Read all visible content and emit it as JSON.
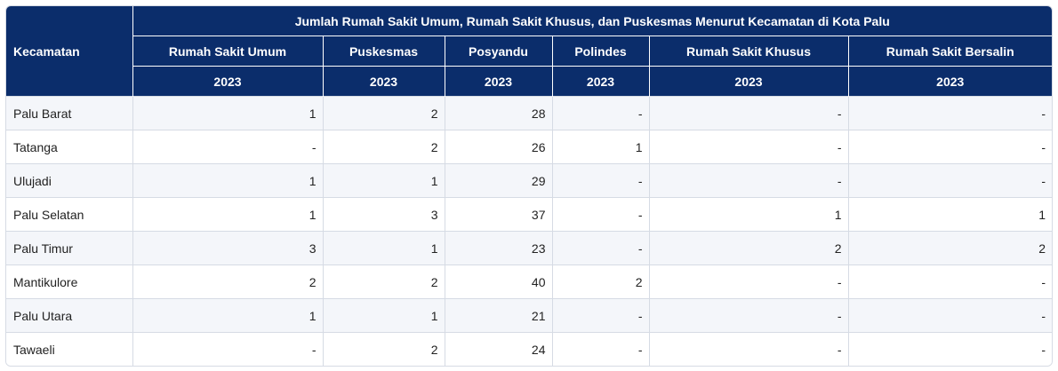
{
  "table": {
    "title": "Jumlah Rumah Sakit Umum, Rumah Sakit Khusus, dan Puskesmas Menurut Kecamatan di Kota Palu",
    "row_header": "Kecamatan",
    "columns": [
      "Rumah Sakit Umum",
      "Puskesmas",
      "Posyandu",
      "Polindes",
      "Rumah Sakit Khusus",
      "Rumah Sakit Bersalin"
    ],
    "years": [
      "2023",
      "2023",
      "2023",
      "2023",
      "2023",
      "2023"
    ],
    "rows": [
      {
        "name": "Palu Barat",
        "values": [
          "1",
          "2",
          "28",
          "-",
          "-",
          "-"
        ]
      },
      {
        "name": "Tatanga",
        "values": [
          "-",
          "2",
          "26",
          "1",
          "-",
          "-"
        ]
      },
      {
        "name": "Ulujadi",
        "values": [
          "1",
          "1",
          "29",
          "-",
          "-",
          "-"
        ]
      },
      {
        "name": "Palu Selatan",
        "values": [
          "1",
          "3",
          "37",
          "-",
          "1",
          "1"
        ]
      },
      {
        "name": "Palu Timur",
        "values": [
          "3",
          "1",
          "23",
          "-",
          "2",
          "2"
        ]
      },
      {
        "name": "Mantikulore",
        "values": [
          "2",
          "2",
          "40",
          "2",
          "-",
          "-"
        ]
      },
      {
        "name": "Palu Utara",
        "values": [
          "1",
          "1",
          "21",
          "-",
          "-",
          "-"
        ]
      },
      {
        "name": "Tawaeli",
        "values": [
          "-",
          "2",
          "24",
          "-",
          "-",
          "-"
        ]
      }
    ]
  },
  "colors": {
    "header_bg": "#0b2d6b",
    "row_alt_bg": "#f4f6fa",
    "border": "#d6dbe4"
  }
}
